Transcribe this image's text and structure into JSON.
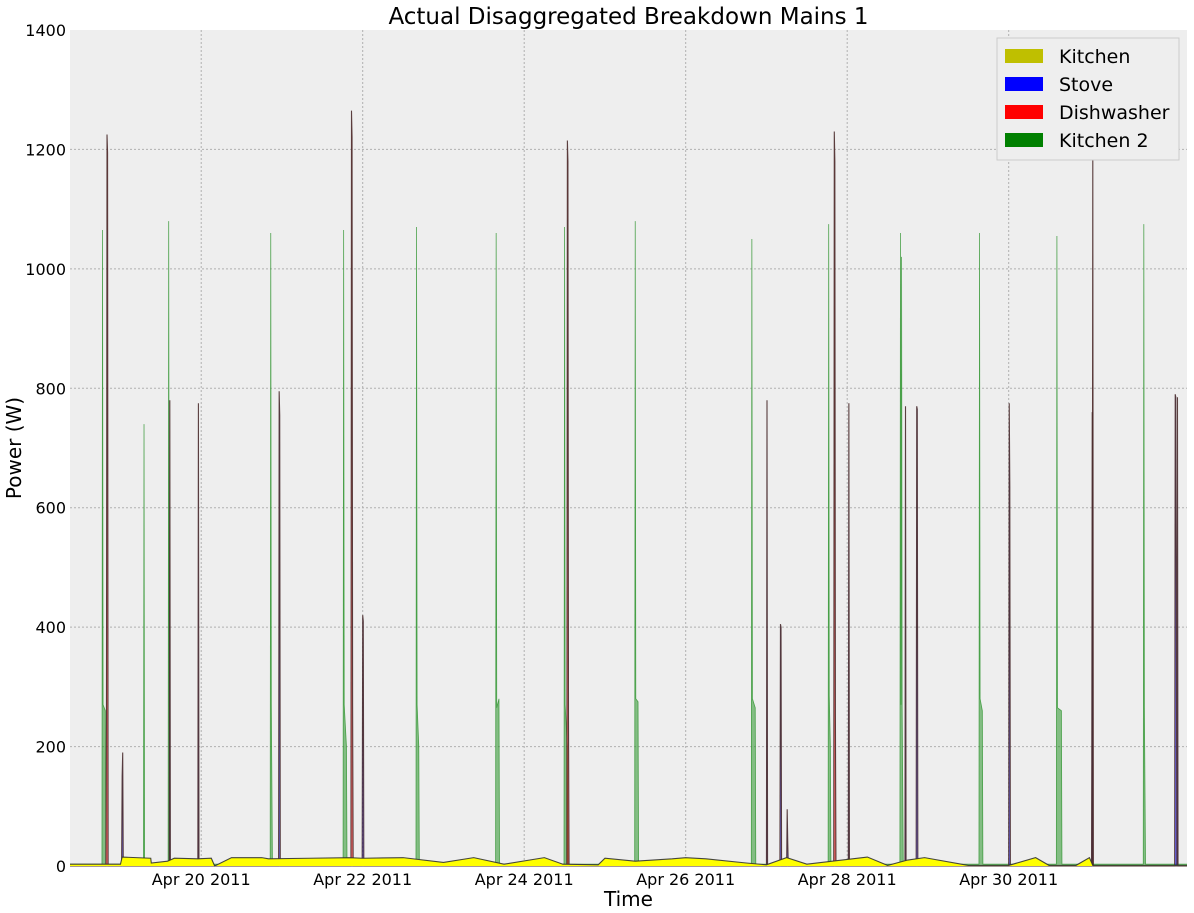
{
  "chart_data": {
    "type": "area",
    "title": "Actual Disaggregated Breakdown Mains 1",
    "xlabel": "Time",
    "ylabel": "Power (W)",
    "ylim": [
      0,
      1400
    ],
    "yticks": [
      0,
      200,
      400,
      600,
      800,
      1000,
      1200,
      1400
    ],
    "x_range": [
      "2011-04-18T09:00",
      "2011-05-02T05:00"
    ],
    "xticks": [
      {
        "t": "2011-04-20",
        "label": "Apr 20 2011"
      },
      {
        "t": "2011-04-22",
        "label": "Apr 22 2011"
      },
      {
        "t": "2011-04-24",
        "label": "Apr 24 2011"
      },
      {
        "t": "2011-04-26",
        "label": "Apr 26 2011"
      },
      {
        "t": "2011-04-28",
        "label": "Apr 28 2011"
      },
      {
        "t": "2011-04-30",
        "label": "Apr 30 2011"
      }
    ],
    "grid": true,
    "legend_position": "top-right",
    "series": [
      {
        "name": "Kitchen 2",
        "color": "#008000",
        "points": [
          [
            "2011-04-18T09:00",
            3
          ],
          [
            "2011-04-18T18:30",
            3
          ],
          [
            "2011-04-18T18:40",
            1065
          ],
          [
            "2011-04-18T18:50",
            270
          ],
          [
            "2011-04-18T19:30",
            260
          ],
          [
            "2011-04-18T19:40",
            3
          ],
          [
            "2011-04-19T06:50",
            3
          ],
          [
            "2011-04-19T07:00",
            740
          ],
          [
            "2011-04-19T07:10",
            3
          ],
          [
            "2011-04-19T14:10",
            3
          ],
          [
            "2011-04-19T14:20",
            1080
          ],
          [
            "2011-04-19T14:30",
            280
          ],
          [
            "2011-04-19T14:40",
            3
          ],
          [
            "2011-04-20T20:30",
            3
          ],
          [
            "2011-04-20T20:40",
            1060
          ],
          [
            "2011-04-20T20:50",
            270
          ],
          [
            "2011-04-20T21:10",
            3
          ],
          [
            "2011-04-21T18:10",
            3
          ],
          [
            "2011-04-21T18:20",
            1065
          ],
          [
            "2011-04-21T18:30",
            270
          ],
          [
            "2011-04-21T19:10",
            200
          ],
          [
            "2011-04-21T19:20",
            3
          ],
          [
            "2011-04-22T15:50",
            3
          ],
          [
            "2011-04-22T16:00",
            1070
          ],
          [
            "2011-04-22T16:10",
            270
          ],
          [
            "2011-04-22T16:40",
            200
          ],
          [
            "2011-04-22T16:50",
            3
          ],
          [
            "2011-04-23T15:30",
            3
          ],
          [
            "2011-04-23T15:40",
            1060
          ],
          [
            "2011-04-23T15:50",
            265
          ],
          [
            "2011-04-23T16:30",
            280
          ],
          [
            "2011-04-23T16:40",
            3
          ],
          [
            "2011-04-24T11:50",
            3
          ],
          [
            "2011-04-24T12:00",
            1070
          ],
          [
            "2011-04-24T12:10",
            270
          ],
          [
            "2011-04-24T12:50",
            200
          ],
          [
            "2011-04-24T13:00",
            3
          ],
          [
            "2011-04-25T08:50",
            3
          ],
          [
            "2011-04-25T09:00",
            1080
          ],
          [
            "2011-04-25T09:10",
            280
          ],
          [
            "2011-04-25T09:50",
            275
          ],
          [
            "2011-04-25T10:00",
            3
          ],
          [
            "2011-04-26T19:30",
            3
          ],
          [
            "2011-04-26T19:40",
            1050
          ],
          [
            "2011-04-26T19:50",
            280
          ],
          [
            "2011-04-26T20:40",
            265
          ],
          [
            "2011-04-26T20:50",
            3
          ],
          [
            "2011-04-27T18:20",
            3
          ],
          [
            "2011-04-27T18:30",
            1075
          ],
          [
            "2011-04-27T18:40",
            285
          ],
          [
            "2011-04-27T19:00",
            200
          ],
          [
            "2011-04-27T19:10",
            3
          ],
          [
            "2011-04-28T15:40",
            3
          ],
          [
            "2011-04-28T15:50",
            1060
          ],
          [
            "2011-04-28T16:00",
            270
          ],
          [
            "2011-04-28T16:10",
            1020
          ],
          [
            "2011-04-28T16:20",
            265
          ],
          [
            "2011-04-28T16:40",
            3
          ],
          [
            "2011-04-29T15:10",
            3
          ],
          [
            "2011-04-29T15:20",
            1060
          ],
          [
            "2011-04-29T15:30",
            280
          ],
          [
            "2011-04-29T16:10",
            260
          ],
          [
            "2011-04-29T16:20",
            3
          ],
          [
            "2011-04-30T14:10",
            3
          ],
          [
            "2011-04-30T14:20",
            1055
          ],
          [
            "2011-04-30T14:30",
            265
          ],
          [
            "2011-04-30T15:40",
            260
          ],
          [
            "2011-04-30T15:50",
            3
          ],
          [
            "2011-05-01T16:00",
            3
          ],
          [
            "2011-05-01T16:10",
            1075
          ],
          [
            "2011-05-01T16:20",
            265
          ],
          [
            "2011-05-01T16:40",
            3
          ],
          [
            "2011-05-02T05:00",
            3
          ]
        ]
      },
      {
        "name": "Dishwasher",
        "color": "#ff0000",
        "points": [
          [
            "2011-04-18T09:00",
            0
          ],
          [
            "2011-04-18T19:40",
            0
          ],
          [
            "2011-04-18T19:50",
            250
          ],
          [
            "2011-04-18T20:00",
            1225
          ],
          [
            "2011-04-18T20:10",
            1195
          ],
          [
            "2011-04-18T20:20",
            0
          ],
          [
            "2011-04-21T20:30",
            0
          ],
          [
            "2011-04-21T20:40",
            1265
          ],
          [
            "2011-04-21T20:50",
            1220
          ],
          [
            "2011-04-21T21:00",
            270
          ],
          [
            "2011-04-21T21:10",
            0
          ],
          [
            "2011-04-24T12:40",
            0
          ],
          [
            "2011-04-24T12:50",
            1215
          ],
          [
            "2011-04-24T13:00",
            1180
          ],
          [
            "2011-04-24T13:10",
            245
          ],
          [
            "2011-04-24T13:20",
            0
          ],
          [
            "2011-04-27T20:00",
            0
          ],
          [
            "2011-04-27T20:10",
            1230
          ],
          [
            "2011-04-27T20:20",
            1180
          ],
          [
            "2011-04-27T20:30",
            250
          ],
          [
            "2011-04-27T20:40",
            0
          ],
          [
            "2011-05-01T00:40",
            0
          ],
          [
            "2011-05-01T00:50",
            260
          ],
          [
            "2011-05-01T01:00",
            1200
          ],
          [
            "2011-05-01T01:10",
            0
          ],
          [
            "2011-05-02T05:00",
            0
          ]
        ]
      },
      {
        "name": "Stove",
        "color": "#0000ff",
        "points": [
          [
            "2011-04-18T09:00",
            0
          ],
          [
            "2011-04-19T00:20",
            0
          ],
          [
            "2011-04-19T00:30",
            150
          ],
          [
            "2011-04-19T00:40",
            190
          ],
          [
            "2011-04-19T00:50",
            0
          ],
          [
            "2011-04-19T14:30",
            0
          ],
          [
            "2011-04-19T14:40",
            780
          ],
          [
            "2011-04-19T14:50",
            0
          ],
          [
            "2011-04-19T23:00",
            0
          ],
          [
            "2011-04-19T23:10",
            775
          ],
          [
            "2011-04-19T23:20",
            0
          ],
          [
            "2011-04-20T23:00",
            0
          ],
          [
            "2011-04-20T23:10",
            795
          ],
          [
            "2011-04-20T23:20",
            755
          ],
          [
            "2011-04-20T23:30",
            0
          ],
          [
            "2011-04-21T23:50",
            0
          ],
          [
            "2011-04-22T00:00",
            420
          ],
          [
            "2011-04-22T00:10",
            410
          ],
          [
            "2011-04-22T00:20",
            0
          ],
          [
            "2011-04-27T00:00",
            0
          ],
          [
            "2011-04-27T00:10",
            780
          ],
          [
            "2011-04-27T00:20",
            0
          ],
          [
            "2011-04-27T04:00",
            0
          ],
          [
            "2011-04-27T04:10",
            405
          ],
          [
            "2011-04-27T04:20",
            400
          ],
          [
            "2011-04-27T04:30",
            0
          ],
          [
            "2011-04-27T06:00",
            0
          ],
          [
            "2011-04-27T06:10",
            95
          ],
          [
            "2011-04-27T06:20",
            40
          ],
          [
            "2011-04-27T06:30",
            0
          ],
          [
            "2011-04-28T00:20",
            0
          ],
          [
            "2011-04-28T00:30",
            775
          ],
          [
            "2011-04-28T00:40",
            0
          ],
          [
            "2011-04-28T17:10",
            0
          ],
          [
            "2011-04-28T17:20",
            770
          ],
          [
            "2011-04-28T17:30",
            0
          ],
          [
            "2011-04-28T20:30",
            0
          ],
          [
            "2011-04-28T20:40",
            770
          ],
          [
            "2011-04-28T20:50",
            765
          ],
          [
            "2011-04-28T21:00",
            0
          ],
          [
            "2011-04-30T00:00",
            0
          ],
          [
            "2011-04-30T00:10",
            775
          ],
          [
            "2011-04-30T00:20",
            635
          ],
          [
            "2011-04-30T00:30",
            0
          ],
          [
            "2011-05-01T00:40",
            0
          ],
          [
            "2011-05-01T00:50",
            760
          ],
          [
            "2011-05-01T01:00",
            0
          ],
          [
            "2011-05-02T01:20",
            0
          ],
          [
            "2011-05-02T01:30",
            790
          ],
          [
            "2011-05-02T01:40",
            785
          ],
          [
            "2011-05-02T02:00",
            0
          ],
          [
            "2011-05-02T02:10",
            785
          ],
          [
            "2011-05-02T02:20",
            0
          ],
          [
            "2011-05-02T05:00",
            0
          ]
        ]
      },
      {
        "name": "Kitchen",
        "color": "#bfbf00",
        "points": [
          [
            "2011-04-18T09:00",
            3
          ],
          [
            "2011-04-19T00:00",
            3
          ],
          [
            "2011-04-19T00:30",
            15
          ],
          [
            "2011-04-19T09:00",
            13
          ],
          [
            "2011-04-19T09:10",
            5
          ],
          [
            "2011-04-19T14:00",
            8
          ],
          [
            "2011-04-19T16:00",
            13
          ],
          [
            "2011-04-19T23:00",
            12
          ],
          [
            "2011-04-20T03:00",
            13
          ],
          [
            "2011-04-20T04:00",
            0
          ],
          [
            "2011-04-20T09:00",
            14
          ],
          [
            "2011-04-20T18:00",
            14
          ],
          [
            "2011-04-20T20:00",
            12
          ],
          [
            "2011-04-21T08:00",
            13
          ],
          [
            "2011-04-21T20:00",
            14
          ],
          [
            "2011-04-22T00:00",
            13
          ],
          [
            "2011-04-22T12:00",
            14
          ],
          [
            "2011-04-23T00:00",
            6
          ],
          [
            "2011-04-23T09:00",
            14
          ],
          [
            "2011-04-23T18:00",
            3
          ],
          [
            "2011-04-24T06:00",
            14
          ],
          [
            "2011-04-24T11:30",
            3
          ],
          [
            "2011-04-24T22:00",
            2
          ],
          [
            "2011-04-25T00:00",
            13
          ],
          [
            "2011-04-25T09:00",
            8
          ],
          [
            "2011-04-25T20:00",
            12
          ],
          [
            "2011-04-26T00:00",
            14
          ],
          [
            "2011-04-26T06:00",
            12
          ],
          [
            "2011-04-26T18:00",
            5
          ],
          [
            "2011-04-27T00:00",
            2
          ],
          [
            "2011-04-27T06:00",
            14
          ],
          [
            "2011-04-27T12:00",
            3
          ],
          [
            "2011-04-28T06:00",
            15
          ],
          [
            "2011-04-28T12:00",
            1
          ],
          [
            "2011-04-28T18:00",
            10
          ],
          [
            "2011-04-28T23:00",
            14
          ],
          [
            "2011-04-29T12:00",
            1
          ],
          [
            "2011-04-30T00:00",
            1
          ],
          [
            "2011-04-30T08:00",
            14
          ],
          [
            "2011-04-30T12:00",
            1
          ],
          [
            "2011-04-30T20:00",
            1
          ],
          [
            "2011-05-01T00:00",
            14
          ],
          [
            "2011-05-01T01:00",
            1
          ],
          [
            "2011-05-02T05:00",
            1
          ]
        ]
      }
    ]
  }
}
